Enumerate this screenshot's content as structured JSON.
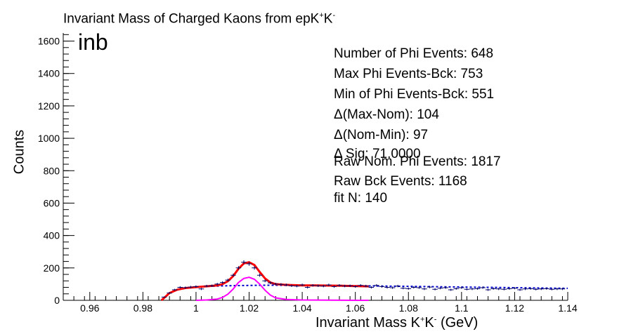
{
  "title_prefix": "Invariant Mass of Charged Kaons from epK",
  "title_sup1": "+",
  "title_mid": "K",
  "title_sup2": "-",
  "tag": "inb",
  "stats": [
    "Number of Phi Events: 648",
    "Max Phi Events-Bck: 753",
    "Min of Phi Events-Bck: 551",
    "Δ(Max-Nom): 104",
    "Δ(Nom-Min): 97",
    "Δ Sig: 71.0000",
    "Raw Nom. Phi Events: 1817",
    "Raw Bck Events: 1168",
    "fit N: 140"
  ],
  "chart_data": {
    "type": "scatter",
    "xlabel_prefix": "Invariant Mass K",
    "xlabel_sup1": "+",
    "xlabel_mid": "K",
    "xlabel_sup2": "-",
    "xlabel_suffix": " (GeV)",
    "ylabel": "Counts",
    "xlim": [
      0.95,
      1.14
    ],
    "ylim": [
      0,
      1650
    ],
    "xticks": [
      0.96,
      0.98,
      1,
      1.02,
      1.04,
      1.06,
      1.08,
      1.1,
      1.12,
      1.14
    ],
    "xtick_labels": [
      "0.96",
      "0.98",
      "1",
      "1.02",
      "1.04",
      "1.06",
      "1.08",
      "1.1",
      "1.12",
      "1.14"
    ],
    "yticks": [
      0,
      200,
      400,
      600,
      800,
      1000,
      1200,
      1400,
      1600
    ],
    "ytick_labels": [
      "0",
      "200",
      "400",
      "600",
      "800",
      "1000",
      "1200",
      "1400",
      "1600"
    ],
    "grid": false,
    "colors": {
      "data": "#000066",
      "total_fit": "#ff0000",
      "signal": "#ff00ff",
      "background": "#0000cc"
    },
    "data_points": {
      "x": [
        0.988,
        0.99,
        0.992,
        0.994,
        0.996,
        0.998,
        1.0,
        1.002,
        1.004,
        1.006,
        1.008,
        1.01,
        1.012,
        1.014,
        1.016,
        1.018,
        1.02,
        1.022,
        1.024,
        1.026,
        1.028,
        1.03,
        1.032,
        1.034,
        1.036,
        1.038,
        1.04,
        1.042,
        1.044,
        1.046,
        1.048,
        1.05,
        1.052,
        1.054,
        1.056,
        1.058,
        1.06,
        1.062,
        1.064,
        1.066,
        1.068,
        1.07,
        1.072,
        1.074,
        1.076,
        1.078,
        1.08,
        1.082,
        1.084,
        1.086,
        1.088,
        1.09,
        1.092,
        1.094,
        1.096,
        1.098,
        1.1,
        1.102,
        1.104,
        1.106,
        1.108,
        1.11,
        1.112,
        1.114,
        1.116,
        1.118,
        1.12,
        1.122,
        1.124,
        1.126,
        1.128,
        1.13,
        1.132,
        1.134,
        1.136,
        1.138
      ],
      "y": [
        20,
        45,
        65,
        80,
        78,
        82,
        85,
        70,
        88,
        90,
        100,
        110,
        125,
        155,
        200,
        235,
        225,
        200,
        155,
        120,
        108,
        100,
        98,
        95,
        90,
        88,
        95,
        80,
        92,
        90,
        88,
        95,
        85,
        92,
        88,
        90,
        85,
        92,
        88,
        80,
        92,
        85,
        80,
        78,
        88,
        75,
        72,
        80,
        78,
        70,
        82,
        68,
        75,
        78,
        65,
        72,
        78,
        68,
        70,
        72,
        78,
        65,
        72,
        70,
        68,
        72,
        75,
        65,
        70,
        72,
        68,
        70,
        72,
        68,
        70,
        70
      ]
    },
    "total_fit": {
      "x": [
        0.987,
        0.99,
        0.993,
        0.996,
        0.999,
        1.002,
        1.005,
        1.008,
        1.01,
        1.012,
        1.014,
        1.016,
        1.018,
        1.02,
        1.022,
        1.024,
        1.026,
        1.028,
        1.03,
        1.033,
        1.036,
        1.04,
        1.045,
        1.05,
        1.055,
        1.06,
        1.065
      ],
      "y": [
        0,
        45,
        66,
        76,
        80,
        84,
        88,
        92,
        100,
        118,
        150,
        195,
        228,
        235,
        218,
        175,
        135,
        110,
        100,
        96,
        94,
        92,
        92,
        91,
        90,
        88,
        86
      ]
    },
    "signal_fit": {
      "x": [
        1.0,
        1.004,
        1.008,
        1.01,
        1.012,
        1.014,
        1.016,
        1.018,
        1.02,
        1.022,
        1.024,
        1.026,
        1.028,
        1.03,
        1.034,
        1.04,
        1.05,
        1.065
      ],
      "y": [
        0,
        2,
        8,
        18,
        38,
        70,
        110,
        135,
        142,
        130,
        100,
        62,
        32,
        15,
        5,
        2,
        1,
        0
      ]
    },
    "background_fit": {
      "x": [
        0.987,
        0.99,
        0.993,
        0.996,
        0.999,
        1.002,
        1.005,
        1.01,
        1.015,
        1.02,
        1.025,
        1.03,
        1.04,
        1.05,
        1.06,
        1.07,
        1.08,
        1.09,
        1.1,
        1.11,
        1.12,
        1.13,
        1.14
      ],
      "y": [
        0,
        45,
        66,
        75,
        80,
        83,
        86,
        89,
        91,
        92,
        93,
        93,
        92,
        91,
        90,
        88,
        86,
        84,
        82,
        80,
        78,
        76,
        74
      ]
    }
  }
}
